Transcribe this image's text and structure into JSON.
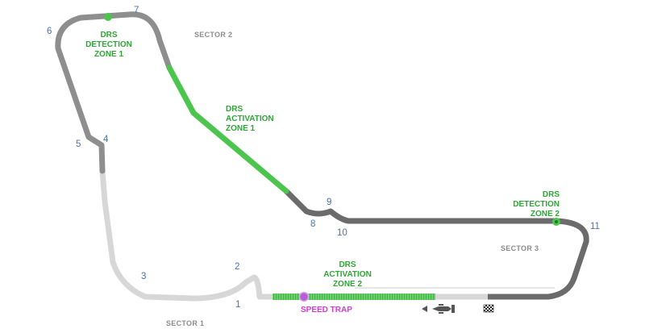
{
  "title": "",
  "colors": {
    "sector1": "#d7d7d7",
    "sector2": "#8e8e8e",
    "sector3": "#6b6b6b",
    "drs": "#4cc54f",
    "drs_detection": "#2ea636",
    "speed_trap": "#d43ad6",
    "turn_label": "#4a72b0",
    "sector_label": "#8c8c8c"
  },
  "sectors": [
    {
      "id": "s1",
      "label": "SECTOR 1"
    },
    {
      "id": "s2",
      "label": "SECTOR 2"
    },
    {
      "id": "s3",
      "label": "SECTOR 3"
    }
  ],
  "turns": [
    "1",
    "2",
    "3",
    "4",
    "5",
    "6",
    "7",
    "8",
    "9",
    "10",
    "11"
  ],
  "drs": {
    "detection_1": [
      "DRS",
      "DETECTION",
      "ZONE 1"
    ],
    "activation_1": [
      "DRS",
      "ACTIVATION",
      "ZONE 1"
    ],
    "detection_2": [
      "DRS",
      "DETECTION",
      "ZONE 2"
    ],
    "activation_2": [
      "DRS",
      "ACTIVATION",
      "ZONE 2"
    ]
  },
  "speed_trap": {
    "label": "SPEED TRAP"
  },
  "icons": {
    "start_finish": "checkered-flag-icon",
    "car": "car-icon",
    "direction": "direction-arrow-icon"
  }
}
